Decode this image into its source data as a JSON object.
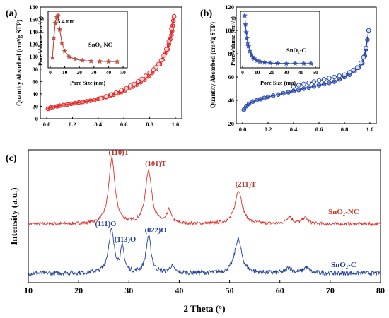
{
  "chart_data": [
    {
      "panel": "(a)",
      "type": "scatter",
      "ylabel": "Quantity Absorbed (cm³/g STP)",
      "xlim": [
        -0.05,
        1.05
      ],
      "ylim": [
        0,
        180
      ],
      "xticks": [
        "0.0",
        "0.2",
        "0.4",
        "0.6",
        "0.8",
        "1.0"
      ],
      "yticks": [
        "0",
        "20",
        "40",
        "60",
        "80",
        "100",
        "120",
        "140",
        "160",
        "180"
      ],
      "color": "#e02020",
      "series": [
        {
          "x": [
            0.01,
            0.03,
            0.05,
            0.08,
            0.1,
            0.13,
            0.16,
            0.19,
            0.22,
            0.25,
            0.28,
            0.31,
            0.34,
            0.37,
            0.4,
            0.43,
            0.46,
            0.49,
            0.52,
            0.55,
            0.58,
            0.61,
            0.64,
            0.67,
            0.7,
            0.73,
            0.76,
            0.79,
            0.82,
            0.85,
            0.88,
            0.9,
            0.92,
            0.94,
            0.95,
            0.96,
            0.97,
            0.975,
            0.98,
            0.985,
            0.99
          ],
          "y": [
            16,
            18,
            19,
            20,
            21,
            22,
            23,
            24,
            25,
            26,
            27,
            28,
            29,
            30,
            32,
            33,
            35,
            37,
            39,
            41,
            43,
            46,
            49,
            52,
            55,
            59,
            63,
            68,
            74,
            80,
            88,
            95,
            105,
            112,
            120,
            128,
            135,
            142,
            150,
            158,
            165
          ]
        },
        {
          "x": [
            0.99,
            0.97,
            0.95,
            0.93,
            0.91,
            0.89,
            0.87,
            0.85,
            0.83,
            0.8,
            0.77,
            0.74,
            0.71,
            0.68,
            0.65,
            0.62,
            0.58,
            0.54,
            0.5,
            0.46,
            0.42
          ],
          "y": [
            165,
            145,
            125,
            112,
            102,
            94,
            88,
            83,
            79,
            74,
            69,
            64,
            60,
            56,
            53,
            49,
            46,
            42,
            39,
            36,
            33
          ]
        }
      ],
      "inset": {
        "ylabel": "Pore Volume (cm³/g)",
        "xlabel": "Pore Size (nm)",
        "xlim": [
          0,
          50
        ],
        "xticks": [
          "0",
          "10",
          "20",
          "30",
          "40",
          "50"
        ],
        "legend": "SnO₂-NC",
        "annotation": "5.4 nm",
        "x": [
          1.5,
          2.5,
          3.5,
          4.5,
          5.4,
          6.5,
          8,
          10,
          13,
          17,
          22,
          28,
          34,
          40,
          46
        ],
        "y": [
          0.15,
          0.55,
          0.85,
          0.97,
          1.0,
          0.72,
          0.45,
          0.28,
          0.17,
          0.12,
          0.09,
          0.08,
          0.075,
          0.07,
          0.07
        ]
      }
    },
    {
      "panel": "(b)",
      "type": "scatter",
      "ylabel": "Quantity Absorbed (cm³/g STP)",
      "xlim": [
        -0.05,
        1.05
      ],
      "ylim": [
        20,
        120
      ],
      "xticks": [
        "0.0",
        "0.2",
        "0.4",
        "0.6",
        "0.8",
        "1.0"
      ],
      "yticks": [
        "20",
        "40",
        "60",
        "80",
        "100",
        "120"
      ],
      "color": "#1f3fa8",
      "series": [
        {
          "x": [
            0.01,
            0.03,
            0.05,
            0.08,
            0.11,
            0.14,
            0.17,
            0.2,
            0.24,
            0.28,
            0.32,
            0.36,
            0.4,
            0.44,
            0.48,
            0.52,
            0.56,
            0.6,
            0.64,
            0.68,
            0.72,
            0.76,
            0.8,
            0.84,
            0.88,
            0.91,
            0.94,
            0.96,
            0.97,
            0.98,
            0.99
          ],
          "y": [
            32,
            35,
            37,
            39,
            40,
            41,
            42,
            43,
            44,
            45,
            46,
            47,
            48,
            49,
            50,
            51,
            52,
            53,
            54,
            55,
            56,
            58,
            60,
            62,
            65,
            68,
            72,
            78,
            84,
            92,
            100
          ]
        },
        {
          "x": [
            0.99,
            0.97,
            0.95,
            0.93,
            0.9,
            0.87,
            0.84,
            0.8,
            0.76,
            0.72,
            0.68,
            0.64,
            0.6,
            0.56,
            0.52,
            0.48,
            0.44,
            0.4
          ],
          "y": [
            100,
            85,
            77,
            72,
            68,
            66,
            64,
            62,
            61,
            60,
            59,
            58,
            57,
            56,
            55,
            54,
            53,
            52
          ]
        }
      ],
      "inset": {
        "ylabel": "Pore Volume (cm³/g)",
        "xlabel": "Pore Size (nm)",
        "xlim": [
          0,
          50
        ],
        "xticks": [
          "0",
          "10",
          "20",
          "30",
          "40",
          "50"
        ],
        "legend": "SnO₂-C",
        "x": [
          1.5,
          2.0,
          2.5,
          3,
          3.5,
          4,
          5,
          6,
          7,
          8,
          10,
          12,
          15,
          19,
          24,
          30,
          36,
          42,
          47
        ],
        "y": [
          1.0,
          0.82,
          0.66,
          0.54,
          0.45,
          0.38,
          0.28,
          0.21,
          0.16,
          0.13,
          0.09,
          0.07,
          0.05,
          0.04,
          0.035,
          0.03,
          0.03,
          0.03,
          0.03
        ]
      }
    },
    {
      "panel": "(c)",
      "type": "line",
      "xlabel": "2 Theta (°)",
      "ylabel": "Intensity (a.u.)",
      "xlim": [
        10,
        80
      ],
      "xticks": [
        "10",
        "20",
        "30",
        "40",
        "50",
        "60",
        "70",
        "80"
      ],
      "series": [
        {
          "name": "SnO₂-NC",
          "color": "#e0302a",
          "peaks": [
            {
              "pos": 26.6,
              "height": 1.0,
              "width": 0.75
            },
            {
              "pos": 33.9,
              "height": 0.82,
              "width": 0.75
            },
            {
              "pos": 38.0,
              "height": 0.2,
              "width": 0.5
            },
            {
              "pos": 51.8,
              "height": 0.52,
              "width": 0.85
            },
            {
              "pos": 61.9,
              "height": 0.12,
              "width": 0.6
            },
            {
              "pos": 65.0,
              "height": 0.1,
              "width": 0.7
            }
          ],
          "annotations": [
            {
              "text": "(110)T",
              "x": 26.6
            },
            {
              "text": "(101)T",
              "x": 33.9
            },
            {
              "text": "(211)T",
              "x": 51.8
            }
          ]
        },
        {
          "name": "SnO₂-C",
          "color": "#1f3f9a",
          "peaks": [
            {
              "pos": 26.5,
              "height": 0.75,
              "width": 0.7
            },
            {
              "pos": 28.7,
              "height": 0.42,
              "width": 0.45
            },
            {
              "pos": 33.9,
              "height": 0.65,
              "width": 0.6
            },
            {
              "pos": 38.5,
              "height": 0.12,
              "width": 0.5
            },
            {
              "pos": 51.7,
              "height": 0.6,
              "width": 0.85
            },
            {
              "pos": 61.8,
              "height": 0.1,
              "width": 0.6
            },
            {
              "pos": 65.2,
              "height": 0.1,
              "width": 0.7
            }
          ],
          "annotations": [
            {
              "text": "(111)O",
              "x": 26.5
            },
            {
              "text": "(113)O",
              "x": 28.7
            },
            {
              "text": "(022)O",
              "x": 33.9
            }
          ]
        }
      ]
    }
  ]
}
